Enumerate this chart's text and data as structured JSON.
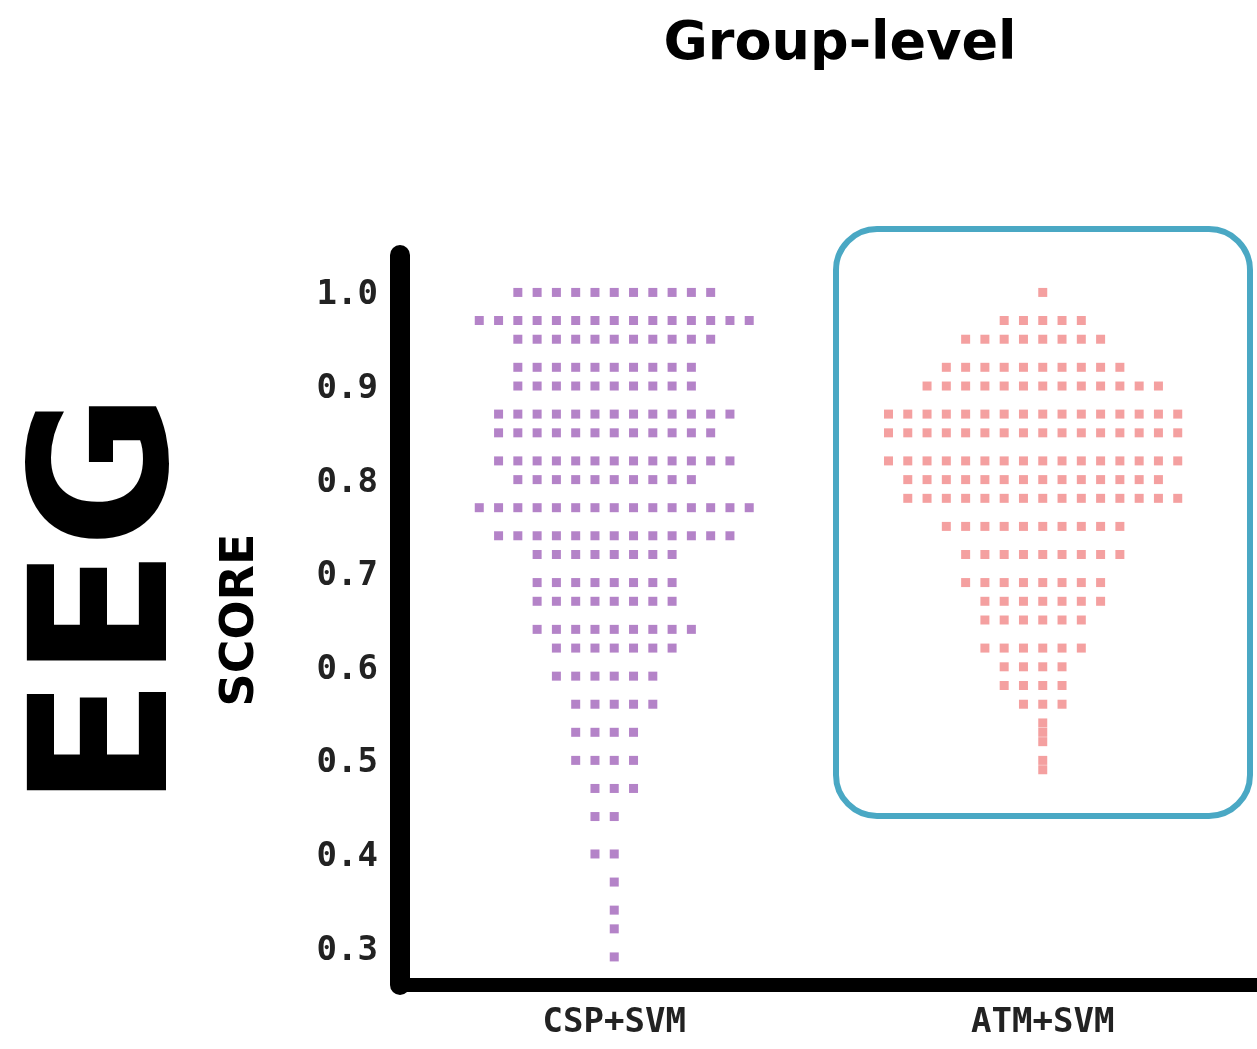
{
  "chart_data": {
    "type": "scatter",
    "title": "Group-level",
    "ylabel": "SCORE",
    "annotations": [
      "EEG"
    ],
    "categories": [
      "CSP+SVM",
      "ATM+SVM"
    ],
    "ylim": [
      0.26,
      1.04
    ],
    "yticks": [
      {
        "value": 0.3,
        "label": "0.3"
      },
      {
        "value": 0.4,
        "label": "0.4"
      },
      {
        "value": 0.5,
        "label": "0.5"
      },
      {
        "value": 0.6,
        "label": "0.6"
      },
      {
        "value": 0.7,
        "label": "0.7"
      },
      {
        "value": 0.8,
        "label": "0.8"
      },
      {
        "value": 0.9,
        "label": "0.9"
      },
      {
        "value": 1,
        "label": "1.0"
      }
    ],
    "grid": false,
    "marker": "square",
    "series": [
      {
        "color": "#9b59b6",
        "x": [
          "CSP+SVM",
          "CSP+SVM",
          "CSP+SVM",
          "CSP+SVM",
          "CSP+SVM",
          "CSP+SVM",
          "CSP+SVM",
          "CSP+SVM",
          "CSP+SVM",
          "CSP+SVM",
          "CSP+SVM",
          "CSP+SVM",
          "CSP+SVM",
          "CSP+SVM",
          "CSP+SVM",
          "CSP+SVM",
          "CSP+SVM",
          "CSP+SVM",
          "CSP+SVM",
          "CSP+SVM",
          "CSP+SVM",
          "CSP+SVM",
          "CSP+SVM",
          "CSP+SVM",
          "CSP+SVM",
          "CSP+SVM",
          "CSP+SVM",
          "CSP+SVM",
          "CSP+SVM",
          "CSP+SVM",
          "CSP+SVM",
          "CSP+SVM",
          "CSP+SVM",
          "CSP+SVM",
          "CSP+SVM",
          "CSP+SVM",
          "CSP+SVM",
          "CSP+SVM",
          "CSP+SVM",
          "CSP+SVM",
          "CSP+SVM",
          "CSP+SVM",
          "CSP+SVM",
          "CSP+SVM",
          "CSP+SVM",
          "CSP+SVM",
          "CSP+SVM",
          "CSP+SVM",
          "CSP+SVM",
          "CSP+SVM",
          "CSP+SVM",
          "CSP+SVM",
          "CSP+SVM",
          "CSP+SVM",
          "CSP+SVM",
          "CSP+SVM",
          "CSP+SVM",
          "CSP+SVM",
          "CSP+SVM",
          "CSP+SVM",
          "CSP+SVM",
          "CSP+SVM",
          "CSP+SVM",
          "CSP+SVM",
          "CSP+SVM",
          "CSP+SVM",
          "CSP+SVM",
          "CSP+SVM",
          "CSP+SVM",
          "CSP+SVM",
          "CSP+SVM",
          "CSP+SVM",
          "CSP+SVM",
          "CSP+SVM",
          "CSP+SVM",
          "CSP+SVM",
          "CSP+SVM",
          "CSP+SVM",
          "CSP+SVM",
          "CSP+SVM",
          "CSP+SVM",
          "CSP+SVM",
          "CSP+SVM",
          "CSP+SVM",
          "CSP+SVM",
          "CSP+SVM",
          "CSP+SVM",
          "CSP+SVM",
          "CSP+SVM",
          "CSP+SVM",
          "CSP+SVM",
          "CSP+SVM",
          "CSP+SVM",
          "CSP+SVM",
          "CSP+SVM",
          "CSP+SVM",
          "CSP+SVM",
          "CSP+SVM",
          "CSP+SVM",
          "CSP+SVM",
          "CSP+SVM",
          "CSP+SVM",
          "CSP+SVM",
          "CSP+SVM",
          "CSP+SVM",
          "CSP+SVM",
          "CSP+SVM",
          "CSP+SVM",
          "CSP+SVM",
          "CSP+SVM",
          "CSP+SVM",
          "CSP+SVM",
          "CSP+SVM",
          "CSP+SVM",
          "CSP+SVM",
          "CSP+SVM",
          "CSP+SVM",
          "CSP+SVM",
          "CSP+SVM",
          "CSP+SVM",
          "CSP+SVM",
          "CSP+SVM",
          "CSP+SVM",
          "CSP+SVM",
          "CSP+SVM",
          "CSP+SVM",
          "CSP+SVM",
          "CSP+SVM",
          "CSP+SVM",
          "CSP+SVM",
          "CSP+SVM",
          "CSP+SVM",
          "CSP+SVM",
          "CSP+SVM",
          "CSP+SVM",
          "CSP+SVM",
          "CSP+SVM",
          "CSP+SVM",
          "CSP+SVM",
          "CSP+SVM",
          "CSP+SVM",
          "CSP+SVM",
          "CSP+SVM",
          "CSP+SVM",
          "CSP+SVM",
          "CSP+SVM",
          "CSP+SVM",
          "CSP+SVM",
          "CSP+SVM",
          "CSP+SVM",
          "CSP+SVM",
          "CSP+SVM",
          "CSP+SVM",
          "CSP+SVM",
          "CSP+SVM",
          "CSP+SVM",
          "CSP+SVM",
          "CSP+SVM",
          "CSP+SVM",
          "CSP+SVM",
          "CSP+SVM",
          "CSP+SVM",
          "CSP+SVM",
          "CSP+SVM",
          "CSP+SVM",
          "CSP+SVM",
          "CSP+SVM",
          "CSP+SVM",
          "CSP+SVM",
          "CSP+SVM",
          "CSP+SVM",
          "CSP+SVM",
          "CSP+SVM",
          "CSP+SVM",
          "CSP+SVM",
          "CSP+SVM",
          "CSP+SVM",
          "CSP+SVM",
          "CSP+SVM",
          "CSP+SVM",
          "CSP+SVM",
          "CSP+SVM",
          "CSP+SVM",
          "CSP+SVM",
          "CSP+SVM",
          "CSP+SVM",
          "CSP+SVM",
          "CSP+SVM",
          "CSP+SVM",
          "CSP+SVM",
          "CSP+SVM",
          "CSP+SVM",
          "CSP+SVM",
          "CSP+SVM",
          "CSP+SVM",
          "CSP+SVM",
          "CSP+SVM",
          "CSP+SVM",
          "CSP+SVM",
          "CSP+SVM",
          "CSP+SVM",
          "CSP+SVM",
          "CSP+SVM"
        ],
        "values": [
          1,
          1,
          1,
          1,
          1,
          1,
          1,
          1,
          1,
          1,
          1,
          0.97,
          0.97,
          0.97,
          0.97,
          0.97,
          0.97,
          0.97,
          0.97,
          0.97,
          0.97,
          0.97,
          0.97,
          0.97,
          0.97,
          0.97,
          0.95,
          0.95,
          0.95,
          0.95,
          0.95,
          0.95,
          0.95,
          0.95,
          0.95,
          0.95,
          0.95,
          0.92,
          0.92,
          0.92,
          0.92,
          0.92,
          0.92,
          0.92,
          0.92,
          0.92,
          0.92,
          0.9,
          0.9,
          0.9,
          0.9,
          0.9,
          0.9,
          0.9,
          0.9,
          0.9,
          0.9,
          0.87,
          0.87,
          0.87,
          0.87,
          0.87,
          0.87,
          0.87,
          0.87,
          0.87,
          0.87,
          0.87,
          0.87,
          0.87,
          0.85,
          0.85,
          0.85,
          0.85,
          0.85,
          0.85,
          0.85,
          0.85,
          0.85,
          0.85,
          0.85,
          0.85,
          0.82,
          0.82,
          0.82,
          0.82,
          0.82,
          0.82,
          0.82,
          0.82,
          0.82,
          0.82,
          0.82,
          0.82,
          0.82,
          0.8,
          0.8,
          0.8,
          0.8,
          0.8,
          0.8,
          0.8,
          0.8,
          0.8,
          0.8,
          0.77,
          0.77,
          0.77,
          0.77,
          0.77,
          0.77,
          0.77,
          0.77,
          0.77,
          0.77,
          0.77,
          0.77,
          0.77,
          0.77,
          0.77,
          0.74,
          0.74,
          0.74,
          0.74,
          0.74,
          0.74,
          0.74,
          0.74,
          0.74,
          0.74,
          0.74,
          0.74,
          0.74,
          0.72,
          0.72,
          0.72,
          0.72,
          0.72,
          0.72,
          0.72,
          0.72,
          0.69,
          0.69,
          0.69,
          0.69,
          0.69,
          0.69,
          0.69,
          0.69,
          0.67,
          0.67,
          0.67,
          0.67,
          0.67,
          0.67,
          0.67,
          0.67,
          0.64,
          0.64,
          0.64,
          0.64,
          0.64,
          0.64,
          0.64,
          0.64,
          0.64,
          0.62,
          0.62,
          0.62,
          0.62,
          0.62,
          0.62,
          0.62,
          0.59,
          0.59,
          0.59,
          0.59,
          0.59,
          0.59,
          0.56,
          0.56,
          0.56,
          0.56,
          0.56,
          0.53,
          0.53,
          0.53,
          0.53,
          0.5,
          0.5,
          0.5,
          0.5,
          0.47,
          0.47,
          0.47,
          0.44,
          0.44,
          0.4,
          0.4,
          0.37,
          0.34,
          0.32,
          0.29
        ]
      },
      {
        "color": "#f08080",
        "x": [
          "ATM+SVM",
          "ATM+SVM",
          "ATM+SVM",
          "ATM+SVM",
          "ATM+SVM",
          "ATM+SVM",
          "ATM+SVM",
          "ATM+SVM",
          "ATM+SVM",
          "ATM+SVM",
          "ATM+SVM",
          "ATM+SVM",
          "ATM+SVM",
          "ATM+SVM",
          "ATM+SVM",
          "ATM+SVM",
          "ATM+SVM",
          "ATM+SVM",
          "ATM+SVM",
          "ATM+SVM",
          "ATM+SVM",
          "ATM+SVM",
          "ATM+SVM",
          "ATM+SVM",
          "ATM+SVM",
          "ATM+SVM",
          "ATM+SVM",
          "ATM+SVM",
          "ATM+SVM",
          "ATM+SVM",
          "ATM+SVM",
          "ATM+SVM",
          "ATM+SVM",
          "ATM+SVM",
          "ATM+SVM",
          "ATM+SVM",
          "ATM+SVM",
          "ATM+SVM",
          "ATM+SVM",
          "ATM+SVM",
          "ATM+SVM",
          "ATM+SVM",
          "ATM+SVM",
          "ATM+SVM",
          "ATM+SVM",
          "ATM+SVM",
          "ATM+SVM",
          "ATM+SVM",
          "ATM+SVM",
          "ATM+SVM",
          "ATM+SVM",
          "ATM+SVM",
          "ATM+SVM",
          "ATM+SVM",
          "ATM+SVM",
          "ATM+SVM",
          "ATM+SVM",
          "ATM+SVM",
          "ATM+SVM",
          "ATM+SVM",
          "ATM+SVM",
          "ATM+SVM",
          "ATM+SVM",
          "ATM+SVM",
          "ATM+SVM",
          "ATM+SVM",
          "ATM+SVM",
          "ATM+SVM",
          "ATM+SVM",
          "ATM+SVM",
          "ATM+SVM",
          "ATM+SVM",
          "ATM+SVM",
          "ATM+SVM",
          "ATM+SVM",
          "ATM+SVM",
          "ATM+SVM",
          "ATM+SVM",
          "ATM+SVM",
          "ATM+SVM",
          "ATM+SVM",
          "ATM+SVM",
          "ATM+SVM",
          "ATM+SVM",
          "ATM+SVM",
          "ATM+SVM",
          "ATM+SVM",
          "ATM+SVM",
          "ATM+SVM",
          "ATM+SVM",
          "ATM+SVM",
          "ATM+SVM",
          "ATM+SVM",
          "ATM+SVM",
          "ATM+SVM",
          "ATM+SVM",
          "ATM+SVM",
          "ATM+SVM",
          "ATM+SVM",
          "ATM+SVM",
          "ATM+SVM",
          "ATM+SVM",
          "ATM+SVM",
          "ATM+SVM",
          "ATM+SVM",
          "ATM+SVM",
          "ATM+SVM",
          "ATM+SVM",
          "ATM+SVM",
          "ATM+SVM",
          "ATM+SVM",
          "ATM+SVM",
          "ATM+SVM",
          "ATM+SVM",
          "ATM+SVM",
          "ATM+SVM",
          "ATM+SVM",
          "ATM+SVM",
          "ATM+SVM",
          "ATM+SVM",
          "ATM+SVM",
          "ATM+SVM",
          "ATM+SVM",
          "ATM+SVM",
          "ATM+SVM",
          "ATM+SVM",
          "ATM+SVM",
          "ATM+SVM",
          "ATM+SVM",
          "ATM+SVM",
          "ATM+SVM",
          "ATM+SVM",
          "ATM+SVM",
          "ATM+SVM",
          "ATM+SVM",
          "ATM+SVM",
          "ATM+SVM",
          "ATM+SVM",
          "ATM+SVM",
          "ATM+SVM",
          "ATM+SVM",
          "ATM+SVM",
          "ATM+SVM",
          "ATM+SVM",
          "ATM+SVM",
          "ATM+SVM",
          "ATM+SVM",
          "ATM+SVM",
          "ATM+SVM",
          "ATM+SVM",
          "ATM+SVM",
          "ATM+SVM",
          "ATM+SVM",
          "ATM+SVM",
          "ATM+SVM",
          "ATM+SVM",
          "ATM+SVM",
          "ATM+SVM",
          "ATM+SVM",
          "ATM+SVM",
          "ATM+SVM",
          "ATM+SVM",
          "ATM+SVM",
          "ATM+SVM",
          "ATM+SVM",
          "ATM+SVM",
          "ATM+SVM",
          "ATM+SVM",
          "ATM+SVM",
          "ATM+SVM",
          "ATM+SVM",
          "ATM+SVM",
          "ATM+SVM",
          "ATM+SVM",
          "ATM+SVM",
          "ATM+SVM"
        ],
        "values": [
          1,
          0.97,
          0.97,
          0.97,
          0.97,
          0.97,
          0.95,
          0.95,
          0.95,
          0.95,
          0.95,
          0.95,
          0.95,
          0.95,
          0.92,
          0.92,
          0.92,
          0.92,
          0.92,
          0.92,
          0.92,
          0.92,
          0.92,
          0.92,
          0.9,
          0.9,
          0.9,
          0.9,
          0.9,
          0.9,
          0.9,
          0.9,
          0.9,
          0.9,
          0.9,
          0.9,
          0.9,
          0.87,
          0.87,
          0.87,
          0.87,
          0.87,
          0.87,
          0.87,
          0.87,
          0.87,
          0.87,
          0.87,
          0.87,
          0.87,
          0.87,
          0.87,
          0.87,
          0.85,
          0.85,
          0.85,
          0.85,
          0.85,
          0.85,
          0.85,
          0.85,
          0.85,
          0.85,
          0.85,
          0.85,
          0.85,
          0.85,
          0.85,
          0.85,
          0.82,
          0.82,
          0.82,
          0.82,
          0.82,
          0.82,
          0.82,
          0.82,
          0.82,
          0.82,
          0.82,
          0.82,
          0.82,
          0.82,
          0.82,
          0.82,
          0.8,
          0.8,
          0.8,
          0.8,
          0.8,
          0.8,
          0.8,
          0.8,
          0.8,
          0.8,
          0.8,
          0.8,
          0.8,
          0.8,
          0.78,
          0.78,
          0.78,
          0.78,
          0.78,
          0.78,
          0.78,
          0.78,
          0.78,
          0.78,
          0.78,
          0.78,
          0.78,
          0.78,
          0.78,
          0.75,
          0.75,
          0.75,
          0.75,
          0.75,
          0.75,
          0.75,
          0.75,
          0.75,
          0.75,
          0.72,
          0.72,
          0.72,
          0.72,
          0.72,
          0.72,
          0.72,
          0.72,
          0.72,
          0.69,
          0.69,
          0.69,
          0.69,
          0.69,
          0.69,
          0.69,
          0.69,
          0.67,
          0.67,
          0.67,
          0.67,
          0.67,
          0.67,
          0.67,
          0.65,
          0.65,
          0.65,
          0.65,
          0.65,
          0.65,
          0.62,
          0.62,
          0.62,
          0.62,
          0.62,
          0.62,
          0.6,
          0.6,
          0.6,
          0.6,
          0.58,
          0.58,
          0.58,
          0.58,
          0.56,
          0.56,
          0.56,
          0.54,
          0.53,
          0.52,
          0.5,
          0.49
        ]
      }
    ]
  }
}
